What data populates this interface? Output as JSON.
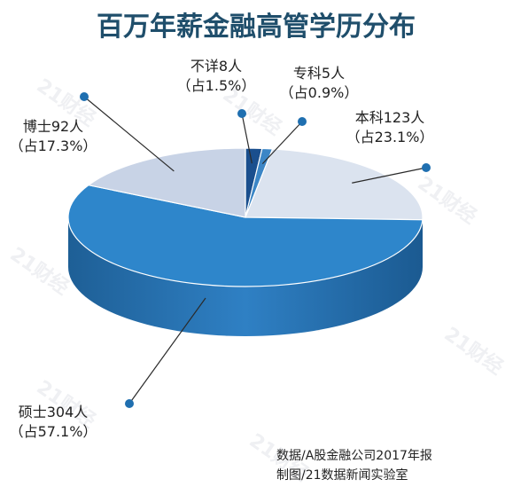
{
  "chart_data": {
    "type": "pie",
    "title": "百万年薪金融高管学历分布",
    "slices": [
      {
        "category": "不详",
        "count": 8,
        "percent": 1.5,
        "label_line1": "不详8人",
        "label_line2": "（占1.5%）",
        "color": "#1a4f8e"
      },
      {
        "category": "专科",
        "count": 5,
        "percent": 0.9,
        "label_line1": "专科5人",
        "label_line2": "（占0.9%）",
        "color": "#3c86c6"
      },
      {
        "category": "本科",
        "count": 123,
        "percent": 23.1,
        "label_line1": "本科123人",
        "label_line2": "（占23.1%）",
        "color": "#dbe3ef"
      },
      {
        "category": "硕士",
        "count": 304,
        "percent": 57.1,
        "label_line1": "硕士304人",
        "label_line2": "（占57.1%）",
        "color": "#2e86cb"
      },
      {
        "category": "博士",
        "count": 92,
        "percent": 17.3,
        "label_line1": "博士92人",
        "label_line2": "（占17.3%）",
        "color": "#c8d3e6"
      }
    ]
  },
  "source": {
    "line1": "数据/A股金融公司2017年报",
    "line2": "制图/21数据新闻实验室"
  },
  "watermark": "21财经"
}
